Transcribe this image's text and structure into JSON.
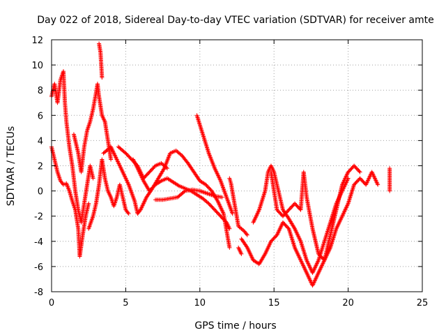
{
  "chart_data": {
    "type": "scatter",
    "title": "Day 022 of 2018, Sidereal Day-to-day VTEC variation (SDTVAR) for receiver amte",
    "xlabel": "GPS time / hours",
    "ylabel": "SDTVAR / TECUs",
    "xlim": [
      0,
      25
    ],
    "ylim": [
      -8,
      12
    ],
    "xticks": [
      "0",
      "5",
      "10",
      "15",
      "20",
      "25"
    ],
    "yticks": [
      "-8",
      "-6",
      "-4",
      "-2",
      "0",
      "2",
      "4",
      "6",
      "8",
      "10",
      "12"
    ],
    "grid": true,
    "marker": "+",
    "color": "#ff0000",
    "traces": [
      {
        "name": "trace-1",
        "points": [
          [
            0.0,
            7.5
          ],
          [
            0.2,
            8.5
          ],
          [
            0.4,
            7.0
          ],
          [
            0.6,
            8.8
          ],
          [
            0.8,
            9.5
          ],
          [
            0.9,
            7.0
          ],
          [
            1.0,
            5.5
          ],
          [
            1.2,
            3.5
          ],
          [
            1.4,
            2.0
          ],
          [
            1.6,
            0.0
          ],
          [
            1.8,
            -1.5
          ],
          [
            2.0,
            -2.5
          ],
          [
            2.2,
            -1.0
          ],
          [
            2.4,
            0.5
          ],
          [
            2.6,
            2.0
          ],
          [
            2.8,
            1.0
          ]
        ]
      },
      {
        "name": "trace-2",
        "points": [
          [
            0.0,
            3.5
          ],
          [
            0.2,
            2.5
          ],
          [
            0.4,
            1.5
          ],
          [
            0.6,
            0.8
          ],
          [
            0.8,
            0.5
          ],
          [
            1.0,
            0.6
          ],
          [
            1.2,
            0.0
          ],
          [
            1.4,
            -0.8
          ],
          [
            1.6,
            -1.5
          ],
          [
            1.8,
            -3.0
          ],
          [
            1.9,
            -5.2
          ],
          [
            2.1,
            -3.5
          ],
          [
            2.3,
            -2.0
          ],
          [
            2.5,
            -1.0
          ]
        ]
      },
      {
        "name": "trace-3",
        "points": [
          [
            1.5,
            4.5
          ],
          [
            1.8,
            3.0
          ],
          [
            2.0,
            1.5
          ],
          [
            2.2,
            3.5
          ],
          [
            2.4,
            4.8
          ],
          [
            2.6,
            5.5
          ],
          [
            2.8,
            6.5
          ],
          [
            3.0,
            7.8
          ],
          [
            3.1,
            8.5
          ],
          [
            3.2,
            7.5
          ],
          [
            3.4,
            6.0
          ],
          [
            3.6,
            5.5
          ],
          [
            3.8,
            4.0
          ],
          [
            4.0,
            2.5
          ]
        ]
      },
      {
        "name": "trace-4",
        "points": [
          [
            2.5,
            -3.0
          ],
          [
            2.8,
            -2.0
          ],
          [
            3.0,
            -1.0
          ],
          [
            3.2,
            0.5
          ],
          [
            3.4,
            2.5
          ],
          [
            3.6,
            1.0
          ],
          [
            3.8,
            0.0
          ],
          [
            4.0,
            -0.5
          ],
          [
            4.2,
            -1.2
          ],
          [
            4.4,
            -0.5
          ],
          [
            4.6,
            0.5
          ],
          [
            4.8,
            -0.5
          ],
          [
            5.0,
            -1.5
          ],
          [
            5.2,
            -1.8
          ]
        ]
      },
      {
        "name": "trace-5",
        "points": [
          [
            3.2,
            11.7
          ],
          [
            3.3,
            11.0
          ],
          [
            3.35,
            10.0
          ],
          [
            3.4,
            9.0
          ]
        ]
      },
      {
        "name": "trace-6",
        "points": [
          [
            3.5,
            3.0
          ],
          [
            4.0,
            3.5
          ],
          [
            4.4,
            2.5
          ],
          [
            4.8,
            1.5
          ],
          [
            5.2,
            0.5
          ],
          [
            5.6,
            -0.8
          ],
          [
            5.8,
            -1.8
          ],
          [
            6.0,
            -1.5
          ],
          [
            6.4,
            -0.5
          ],
          [
            6.8,
            0.2
          ],
          [
            7.2,
            1.0
          ],
          [
            7.6,
            1.8
          ],
          [
            8.0,
            3.0
          ],
          [
            8.4,
            3.2
          ],
          [
            8.8,
            2.8
          ],
          [
            9.2,
            2.2
          ],
          [
            9.6,
            1.5
          ],
          [
            10.0,
            0.8
          ],
          [
            10.4,
            0.5
          ],
          [
            10.8,
            0.0
          ],
          [
            11.2,
            -0.8
          ],
          [
            11.6,
            -1.8
          ],
          [
            12.0,
            -4.5
          ]
        ]
      },
      {
        "name": "trace-7",
        "points": [
          [
            4.5,
            3.5
          ],
          [
            5.0,
            3.0
          ],
          [
            5.4,
            2.5
          ],
          [
            5.8,
            2.0
          ],
          [
            6.2,
            1.0
          ],
          [
            6.6,
            1.5
          ],
          [
            7.0,
            2.0
          ],
          [
            7.4,
            2.2
          ],
          [
            7.8,
            1.8
          ]
        ]
      },
      {
        "name": "trace-8",
        "points": [
          [
            5.5,
            2.5
          ],
          [
            5.8,
            1.8
          ],
          [
            6.2,
            0.8
          ],
          [
            6.6,
            0.0
          ],
          [
            7.0,
            0.5
          ],
          [
            7.4,
            0.8
          ],
          [
            7.8,
            1.0
          ],
          [
            8.2,
            0.7
          ],
          [
            8.6,
            0.4
          ],
          [
            9.0,
            0.2
          ],
          [
            9.4,
            0.0
          ],
          [
            9.8,
            -0.3
          ],
          [
            10.2,
            -0.6
          ],
          [
            10.6,
            -1.0
          ],
          [
            11.0,
            -1.5
          ],
          [
            11.4,
            -2.0
          ],
          [
            11.8,
            -2.5
          ],
          [
            12.0,
            -3.0
          ]
        ]
      },
      {
        "name": "trace-9",
        "points": [
          [
            7.0,
            -0.7
          ],
          [
            7.5,
            -0.7
          ],
          [
            8.0,
            -0.6
          ],
          [
            8.5,
            -0.5
          ],
          [
            9.0,
            0.0
          ],
          [
            9.5,
            0.1
          ],
          [
            10.0,
            0.0
          ],
          [
            10.5,
            -0.2
          ],
          [
            11.0,
            -0.4
          ],
          [
            11.5,
            -0.5
          ]
        ]
      },
      {
        "name": "trace-10",
        "points": [
          [
            9.8,
            6.0
          ],
          [
            10.2,
            4.5
          ],
          [
            10.6,
            3.0
          ],
          [
            11.0,
            1.8
          ],
          [
            11.4,
            0.8
          ],
          [
            11.8,
            -0.5
          ],
          [
            12.2,
            -1.8
          ]
        ]
      },
      {
        "name": "trace-11",
        "points": [
          [
            12.0,
            1.0
          ],
          [
            12.1,
            0.6
          ],
          [
            12.6,
            -2.8
          ],
          [
            13.0,
            -3.2
          ],
          [
            13.2,
            -3.5
          ]
        ]
      },
      {
        "name": "trace-12",
        "points": [
          [
            12.6,
            -4.5
          ],
          [
            12.8,
            -5.0
          ]
        ]
      },
      {
        "name": "trace-13",
        "points": [
          [
            12.8,
            -3.8
          ],
          [
            13.2,
            -4.5
          ],
          [
            13.6,
            -5.5
          ],
          [
            14.0,
            -5.8
          ],
          [
            14.4,
            -5.0
          ],
          [
            14.8,
            -4.0
          ],
          [
            15.2,
            -3.5
          ],
          [
            15.6,
            -2.5
          ],
          [
            16.0,
            -3.0
          ],
          [
            16.4,
            -4.5
          ],
          [
            16.8,
            -5.5
          ],
          [
            17.2,
            -6.5
          ],
          [
            17.6,
            -7.5
          ],
          [
            18.0,
            -6.5
          ],
          [
            18.4,
            -5.5
          ],
          [
            18.8,
            -3.5
          ],
          [
            19.2,
            -1.5
          ],
          [
            19.6,
            0.5
          ],
          [
            20.0,
            1.5
          ],
          [
            20.4,
            2.0
          ],
          [
            20.8,
            1.5
          ]
        ]
      },
      {
        "name": "trace-14",
        "points": [
          [
            13.6,
            -2.5
          ],
          [
            14.0,
            -1.5
          ],
          [
            14.4,
            0.0
          ],
          [
            14.6,
            1.5
          ],
          [
            14.8,
            2.0
          ],
          [
            15.0,
            1.5
          ],
          [
            15.2,
            0.5
          ],
          [
            15.4,
            -0.5
          ],
          [
            15.6,
            -1.5
          ],
          [
            16.0,
            -2.2
          ],
          [
            16.4,
            -3.0
          ],
          [
            16.8,
            -4.0
          ],
          [
            17.2,
            -5.5
          ],
          [
            17.6,
            -6.5
          ],
          [
            18.0,
            -5.5
          ],
          [
            18.4,
            -4.0
          ],
          [
            18.8,
            -2.5
          ],
          [
            19.2,
            -1.0
          ],
          [
            19.6,
            0.0
          ],
          [
            20.0,
            1.0
          ]
        ]
      },
      {
        "name": "trace-15",
        "points": [
          [
            14.8,
            1.5
          ],
          [
            15.0,
            0.0
          ],
          [
            15.2,
            -1.5
          ],
          [
            15.6,
            -2.0
          ],
          [
            16.0,
            -1.5
          ],
          [
            16.4,
            -1.0
          ],
          [
            16.8,
            -1.5
          ],
          [
            17.0,
            1.5
          ],
          [
            17.2,
            -0.5
          ],
          [
            17.6,
            -3.0
          ],
          [
            18.0,
            -5.0
          ],
          [
            18.4,
            -5.5
          ],
          [
            18.8,
            -4.5
          ],
          [
            19.2,
            -3.0
          ],
          [
            19.6,
            -2.0
          ],
          [
            20.0,
            -1.0
          ],
          [
            20.4,
            0.5
          ],
          [
            20.8,
            1.0
          ],
          [
            21.2,
            0.5
          ],
          [
            21.6,
            1.5
          ],
          [
            22.0,
            0.5
          ]
        ]
      },
      {
        "name": "trace-16",
        "points": [
          [
            22.8,
            1.8
          ],
          [
            22.8,
            0.0
          ]
        ]
      }
    ]
  }
}
